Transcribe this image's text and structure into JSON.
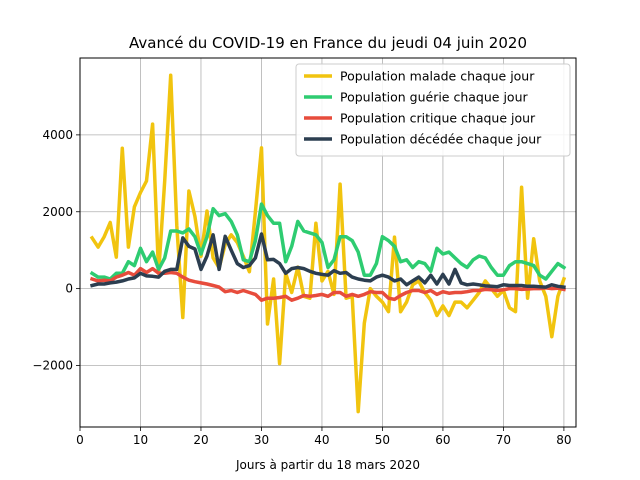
{
  "chart_data": {
    "type": "line",
    "title": "Avancé du COVID-19 en France du jeudi 04 juin 2020",
    "xlabel": "Jours à partir du 18 mars 2020",
    "ylabel": "",
    "xlim": [
      0,
      82
    ],
    "ylim": [
      -3600,
      6000
    ],
    "xticks": [
      0,
      10,
      20,
      30,
      40,
      50,
      60,
      70,
      80
    ],
    "yticks": [
      -2000,
      0,
      2000,
      4000
    ],
    "ytick_labels": [
      "−2000",
      "0",
      "2000",
      "4000"
    ],
    "grid": true,
    "legend_position": "top-right",
    "series": [
      {
        "name": "Population malade chaque jour",
        "color": "#f1c40f",
        "x": [
          2,
          3,
          4,
          5,
          6,
          7,
          8,
          9,
          10,
          11,
          12,
          13,
          14,
          15,
          16,
          17,
          18,
          19,
          20,
          21,
          22,
          23,
          24,
          25,
          26,
          27,
          28,
          29,
          30,
          31,
          32,
          33,
          34,
          35,
          36,
          37,
          38,
          39,
          40,
          41,
          42,
          43,
          44,
          45,
          46,
          47,
          48,
          49,
          50,
          51,
          52,
          53,
          54,
          55,
          56,
          57,
          58,
          59,
          60,
          61,
          62,
          63,
          64,
          65,
          66,
          67,
          68,
          69,
          70,
          71,
          72,
          73,
          74,
          75,
          76,
          77,
          78,
          79,
          80
        ],
        "values": [
          1320,
          1080,
          1350,
          1720,
          820,
          3650,
          1080,
          2130,
          2500,
          2800,
          4280,
          400,
          2800,
          5550,
          1640,
          -750,
          2540,
          1880,
          840,
          2020,
          800,
          540,
          1150,
          1400,
          1200,
          840,
          440,
          2000,
          3660,
          -920,
          250,
          -1950,
          400,
          -100,
          560,
          -200,
          -250,
          1700,
          200,
          450,
          -150,
          2720,
          -250,
          -200,
          -3200,
          -900,
          0,
          -200,
          -350,
          -600,
          1340,
          -600,
          -350,
          100,
          200,
          -100,
          -300,
          -700,
          -450,
          -700,
          -350,
          -350,
          -500,
          -300,
          -100,
          200,
          0,
          -200,
          -50,
          -500,
          -600,
          2640,
          -250,
          1300,
          200,
          -200,
          -1250,
          -200,
          250
        ]
      },
      {
        "name": "Population guérie chaque jour",
        "color": "#2ecc71",
        "x": [
          2,
          3,
          4,
          5,
          6,
          7,
          8,
          9,
          10,
          11,
          12,
          13,
          14,
          15,
          16,
          17,
          18,
          19,
          20,
          21,
          22,
          23,
          24,
          25,
          26,
          27,
          28,
          29,
          30,
          31,
          32,
          33,
          34,
          35,
          36,
          37,
          38,
          39,
          40,
          41,
          42,
          43,
          44,
          45,
          46,
          47,
          48,
          49,
          50,
          51,
          52,
          53,
          54,
          55,
          56,
          57,
          58,
          59,
          60,
          61,
          62,
          63,
          64,
          65,
          66,
          67,
          68,
          69,
          70,
          71,
          72,
          73,
          74,
          75,
          76,
          77,
          78,
          79,
          80
        ],
        "values": [
          400,
          300,
          300,
          250,
          400,
          400,
          700,
          600,
          1050,
          700,
          950,
          500,
          800,
          1500,
          1500,
          1450,
          1550,
          1350,
          900,
          1350,
          2080,
          1900,
          1950,
          1750,
          1400,
          750,
          700,
          1250,
          2200,
          1900,
          1700,
          1700,
          700,
          1100,
          1750,
          1500,
          1450,
          1400,
          1200,
          550,
          750,
          1350,
          1350,
          1250,
          950,
          350,
          350,
          650,
          1350,
          1250,
          1100,
          700,
          750,
          550,
          700,
          650,
          450,
          1050,
          900,
          950,
          800,
          650,
          550,
          750,
          850,
          800,
          550,
          350,
          350,
          600,
          700,
          700,
          650,
          600,
          350,
          250,
          450,
          650,
          550
        ]
      },
      {
        "name": "Population critique chaque jour",
        "color": "#e74c3c",
        "x": [
          2,
          3,
          4,
          5,
          6,
          7,
          8,
          9,
          10,
          11,
          12,
          13,
          14,
          15,
          16,
          17,
          18,
          19,
          20,
          21,
          22,
          23,
          24,
          25,
          26,
          27,
          28,
          29,
          30,
          31,
          32,
          33,
          34,
          35,
          36,
          37,
          38,
          39,
          40,
          41,
          42,
          43,
          44,
          45,
          46,
          47,
          48,
          49,
          50,
          51,
          52,
          53,
          54,
          55,
          56,
          57,
          58,
          59,
          60,
          61,
          62,
          63,
          64,
          65,
          66,
          67,
          68,
          69,
          70,
          71,
          72,
          73,
          74,
          75,
          76,
          77,
          78,
          79,
          80
        ],
        "values": [
          250,
          200,
          220,
          200,
          300,
          350,
          420,
          350,
          520,
          420,
          520,
          400,
          400,
          420,
          400,
          300,
          220,
          180,
          150,
          120,
          80,
          40,
          -80,
          -50,
          -100,
          -50,
          -100,
          -150,
          -300,
          -250,
          -250,
          -230,
          -200,
          -300,
          -250,
          -180,
          -200,
          -180,
          -150,
          -200,
          -100,
          -100,
          -200,
          -150,
          -200,
          -150,
          -80,
          -100,
          -100,
          -250,
          -280,
          -180,
          -100,
          -50,
          -50,
          -100,
          -50,
          -150,
          -80,
          -120,
          -100,
          -100,
          -80,
          -50,
          -50,
          -20,
          -30,
          -50,
          -30,
          0,
          0,
          -20,
          -10,
          0,
          0,
          20,
          0,
          10,
          -20
        ]
      },
      {
        "name": "Population décédée chaque jour",
        "color": "#2c3e50",
        "x": [
          2,
          3,
          4,
          5,
          6,
          7,
          8,
          9,
          10,
          11,
          12,
          13,
          14,
          15,
          16,
          17,
          18,
          19,
          20,
          21,
          22,
          23,
          24,
          25,
          26,
          27,
          28,
          29,
          30,
          31,
          32,
          33,
          34,
          35,
          36,
          37,
          38,
          39,
          40,
          41,
          42,
          43,
          44,
          45,
          46,
          47,
          48,
          49,
          50,
          51,
          52,
          53,
          54,
          55,
          56,
          57,
          58,
          59,
          60,
          61,
          62,
          63,
          64,
          65,
          66,
          67,
          68,
          69,
          70,
          71,
          72,
          73,
          74,
          75,
          76,
          77,
          78,
          79,
          80
        ],
        "values": [
          80,
          120,
          120,
          150,
          170,
          200,
          250,
          280,
          400,
          330,
          320,
          300,
          450,
          500,
          500,
          1320,
          1100,
          1030,
          500,
          850,
          1400,
          500,
          1360,
          1000,
          650,
          550,
          600,
          800,
          1420,
          750,
          760,
          650,
          400,
          520,
          550,
          520,
          450,
          400,
          370,
          350,
          470,
          400,
          420,
          300,
          250,
          220,
          200,
          300,
          350,
          300,
          200,
          250,
          100,
          200,
          300,
          150,
          350,
          120,
          370,
          120,
          500,
          150,
          100,
          120,
          100,
          70,
          60,
          50,
          100,
          80,
          80,
          80,
          60,
          60,
          50,
          40,
          100,
          60,
          40
        ]
      }
    ]
  }
}
